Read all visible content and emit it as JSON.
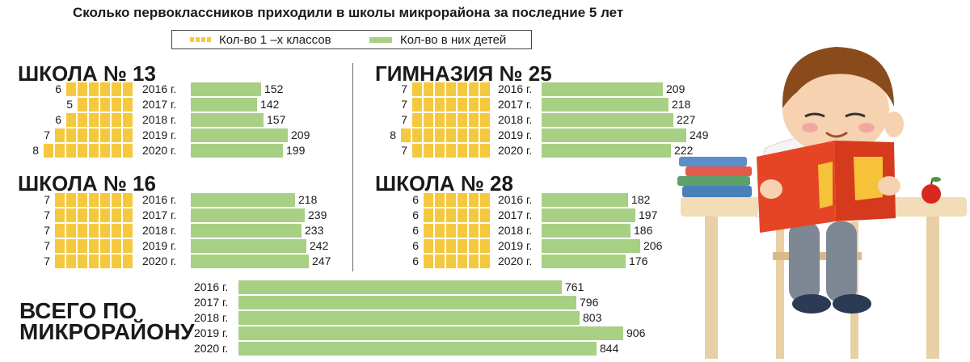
{
  "title": "Сколько первоклассников приходили в школы микрорайона за последние 5 лет",
  "legend": {
    "classes": "Кол-во 1 –х классов",
    "children": "Кол-во в них детей"
  },
  "colors": {
    "classes": "#f5c93e",
    "children": "#a8d085"
  },
  "chart_data": [
    {
      "type": "bar",
      "title": "ШКОЛА № 13",
      "categories": [
        "2016 г.",
        "2017 г.",
        "2018 г.",
        "2019 г.",
        "2020 г."
      ],
      "series": [
        {
          "name": "Кол-во 1 –х классов",
          "values": [
            6,
            5,
            6,
            7,
            8
          ]
        },
        {
          "name": "Кол-во в них детей",
          "values": [
            152,
            142,
            157,
            209,
            199
          ]
        }
      ]
    },
    {
      "type": "bar",
      "title": "ГИМНАЗИЯ № 25",
      "categories": [
        "2016 г.",
        "2017 г.",
        "2018 г.",
        "2019 г.",
        "2020 г."
      ],
      "series": [
        {
          "name": "Кол-во 1 –х классов",
          "values": [
            7,
            7,
            7,
            8,
            7
          ]
        },
        {
          "name": "Кол-во в них детей",
          "values": [
            209,
            218,
            227,
            249,
            222
          ]
        }
      ]
    },
    {
      "type": "bar",
      "title": "ШКОЛА № 16",
      "categories": [
        "2016 г.",
        "2017 г.",
        "2018 г.",
        "2019 г.",
        "2020 г."
      ],
      "series": [
        {
          "name": "Кол-во 1 –х классов",
          "values": [
            7,
            7,
            7,
            7,
            7
          ]
        },
        {
          "name": "Кол-во в них детей",
          "values": [
            218,
            239,
            233,
            242,
            247
          ]
        }
      ]
    },
    {
      "type": "bar",
      "title": "ШКОЛА № 28",
      "categories": [
        "2016 г.",
        "2017 г.",
        "2018 г.",
        "2019 г.",
        "2020 г."
      ],
      "series": [
        {
          "name": "Кол-во 1 –х классов",
          "values": [
            6,
            6,
            6,
            6,
            6
          ]
        },
        {
          "name": "Кол-во в них детей",
          "values": [
            182,
            197,
            186,
            206,
            176
          ]
        }
      ]
    },
    {
      "type": "bar",
      "title": "ВСЕГО ПО МИКРОРАЙОНУ",
      "categories": [
        "2016 г.",
        "2017 г.",
        "2018 г.",
        "2019 г.",
        "2020 г."
      ],
      "series": [
        {
          "name": "Кол-во в них детей",
          "values": [
            761,
            796,
            803,
            906,
            844
          ]
        }
      ]
    }
  ],
  "bottom_heading": [
    "ВСЕГО ПО",
    "МИКРОРАЙОНУ"
  ]
}
